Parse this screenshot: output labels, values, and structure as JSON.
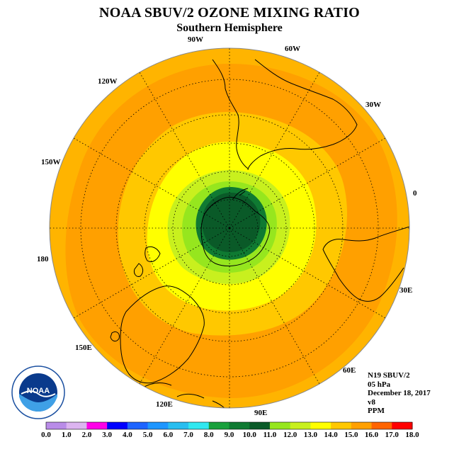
{
  "title": "NOAA SBUV/2 OZONE MIXING RATIO",
  "subtitle": "Southern Hemisphere",
  "longitude_labels": {
    "lon_90w": "90W",
    "lon_60w": "60W",
    "lon_30w": "30W",
    "lon_0": "0",
    "lon_30e": "30E",
    "lon_60e": "60E",
    "lon_90e": "90E",
    "lon_120e": "120E",
    "lon_150e": "150E",
    "lon_180": "180",
    "lon_150w": "150W",
    "lon_120w": "120W"
  },
  "info": {
    "satellite": "N19 SBUV/2",
    "level": "05 hPa",
    "date": "December 18, 2017",
    "version": "v8",
    "units": "PPM"
  },
  "logo_text": "NOAA",
  "colorbar": {
    "labels": [
      "0.0",
      "1.0",
      "2.0",
      "3.0",
      "4.0",
      "5.0",
      "6.0",
      "7.0",
      "8.0",
      "9.0",
      "10.0",
      "11.0",
      "12.0",
      "13.0",
      "14.0",
      "15.0",
      "16.0",
      "17.0",
      "18.0"
    ],
    "colors": [
      "#b98ce8",
      "#dcb4f0",
      "#ff00e8",
      "#0000ff",
      "#1e64ff",
      "#1e96ff",
      "#28bef0",
      "#30e8f0",
      "#19a03c",
      "#0f7a32",
      "#0a5a28",
      "#96e61e",
      "#c8f01e",
      "#ffff00",
      "#ffc800",
      "#ffa000",
      "#ff6400",
      "#ff0000",
      "#8b5a3c"
    ]
  },
  "map": {
    "ocean_fill_outer": "#ffb400",
    "contour_colors": [
      "#ffa000",
      "#ffc800",
      "#ffff00",
      "#c8f01e",
      "#96e61e",
      "#0f7a32",
      "#0a5a28"
    ]
  }
}
